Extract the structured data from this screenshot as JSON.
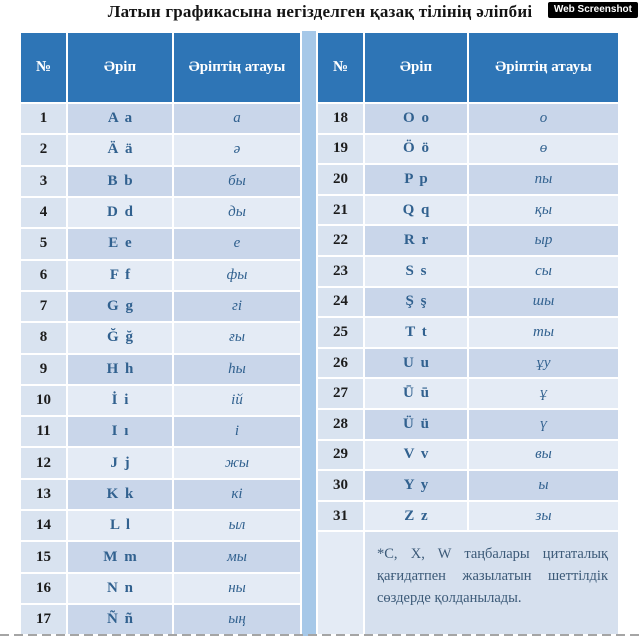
{
  "title": "Латын графикасына негізделген қазақ тілінің әліпбиі",
  "badge_label": "Web Screenshot",
  "table": {
    "columns": [
      "№",
      "Әріп",
      "Әріптің атауы"
    ],
    "left_rows": [
      {
        "n": "1",
        "letter": "A a",
        "name": "a"
      },
      {
        "n": "2",
        "letter": "Ä ä",
        "name": "ә"
      },
      {
        "n": "3",
        "letter": "B b",
        "name": "бы"
      },
      {
        "n": "4",
        "letter": "D d",
        "name": "ды"
      },
      {
        "n": "5",
        "letter": "E e",
        "name": "е"
      },
      {
        "n": "6",
        "letter": "F f",
        "name": "фы"
      },
      {
        "n": "7",
        "letter": "G g",
        "name": "гі"
      },
      {
        "n": "8",
        "letter": "Ğ ğ",
        "name": "ғы"
      },
      {
        "n": "9",
        "letter": "H h",
        "name": "һы"
      },
      {
        "n": "10",
        "letter": "İ i",
        "name": "ій"
      },
      {
        "n": "11",
        "letter": "I ı",
        "name": "і"
      },
      {
        "n": "12",
        "letter": "J j",
        "name": "жы"
      },
      {
        "n": "13",
        "letter": "K k",
        "name": "кі"
      },
      {
        "n": "14",
        "letter": "L l",
        "name": "ыл"
      },
      {
        "n": "15",
        "letter": "M m",
        "name": "мы"
      },
      {
        "n": "16",
        "letter": "N n",
        "name": "ны"
      },
      {
        "n": "17",
        "letter": "Ñ ñ",
        "name": "ың"
      }
    ],
    "right_rows": [
      {
        "n": "18",
        "letter": "O o",
        "name": "о"
      },
      {
        "n": "19",
        "letter": "Ö ö",
        "name": "ө"
      },
      {
        "n": "20",
        "letter": "P p",
        "name": "пы"
      },
      {
        "n": "21",
        "letter": "Q q",
        "name": "қы"
      },
      {
        "n": "22",
        "letter": "R r",
        "name": "ыр"
      },
      {
        "n": "23",
        "letter": "S s",
        "name": "сы"
      },
      {
        "n": "24",
        "letter": "Ş ş",
        "name": "шы"
      },
      {
        "n": "25",
        "letter": "T t",
        "name": "ты"
      },
      {
        "n": "26",
        "letter": "U u",
        "name": "ұу"
      },
      {
        "n": "27",
        "letter": "Ū ū",
        "name": "ұ"
      },
      {
        "n": "28",
        "letter": "Ü ü",
        "name": "ү"
      },
      {
        "n": "29",
        "letter": "V v",
        "name": "вы"
      },
      {
        "n": "30",
        "letter": "Y y",
        "name": "ы"
      },
      {
        "n": "31",
        "letter": "Z z",
        "name": "зы"
      }
    ],
    "footnote": "*C, X, W таңбалары цитаталық қағидатпен жазылатын шеттілдік сөздерде қолданылады."
  },
  "colors": {
    "header_blue": "#2e75b6",
    "header_text": "#ffffff",
    "row_dark": "#c9d6ea",
    "row_light": "#e4ebf5",
    "number_col": "#d9e3f0",
    "gap_strip": "#a6c8e8",
    "footnote_bg": "#d6e0ee",
    "letter_text": "#31618f"
  }
}
